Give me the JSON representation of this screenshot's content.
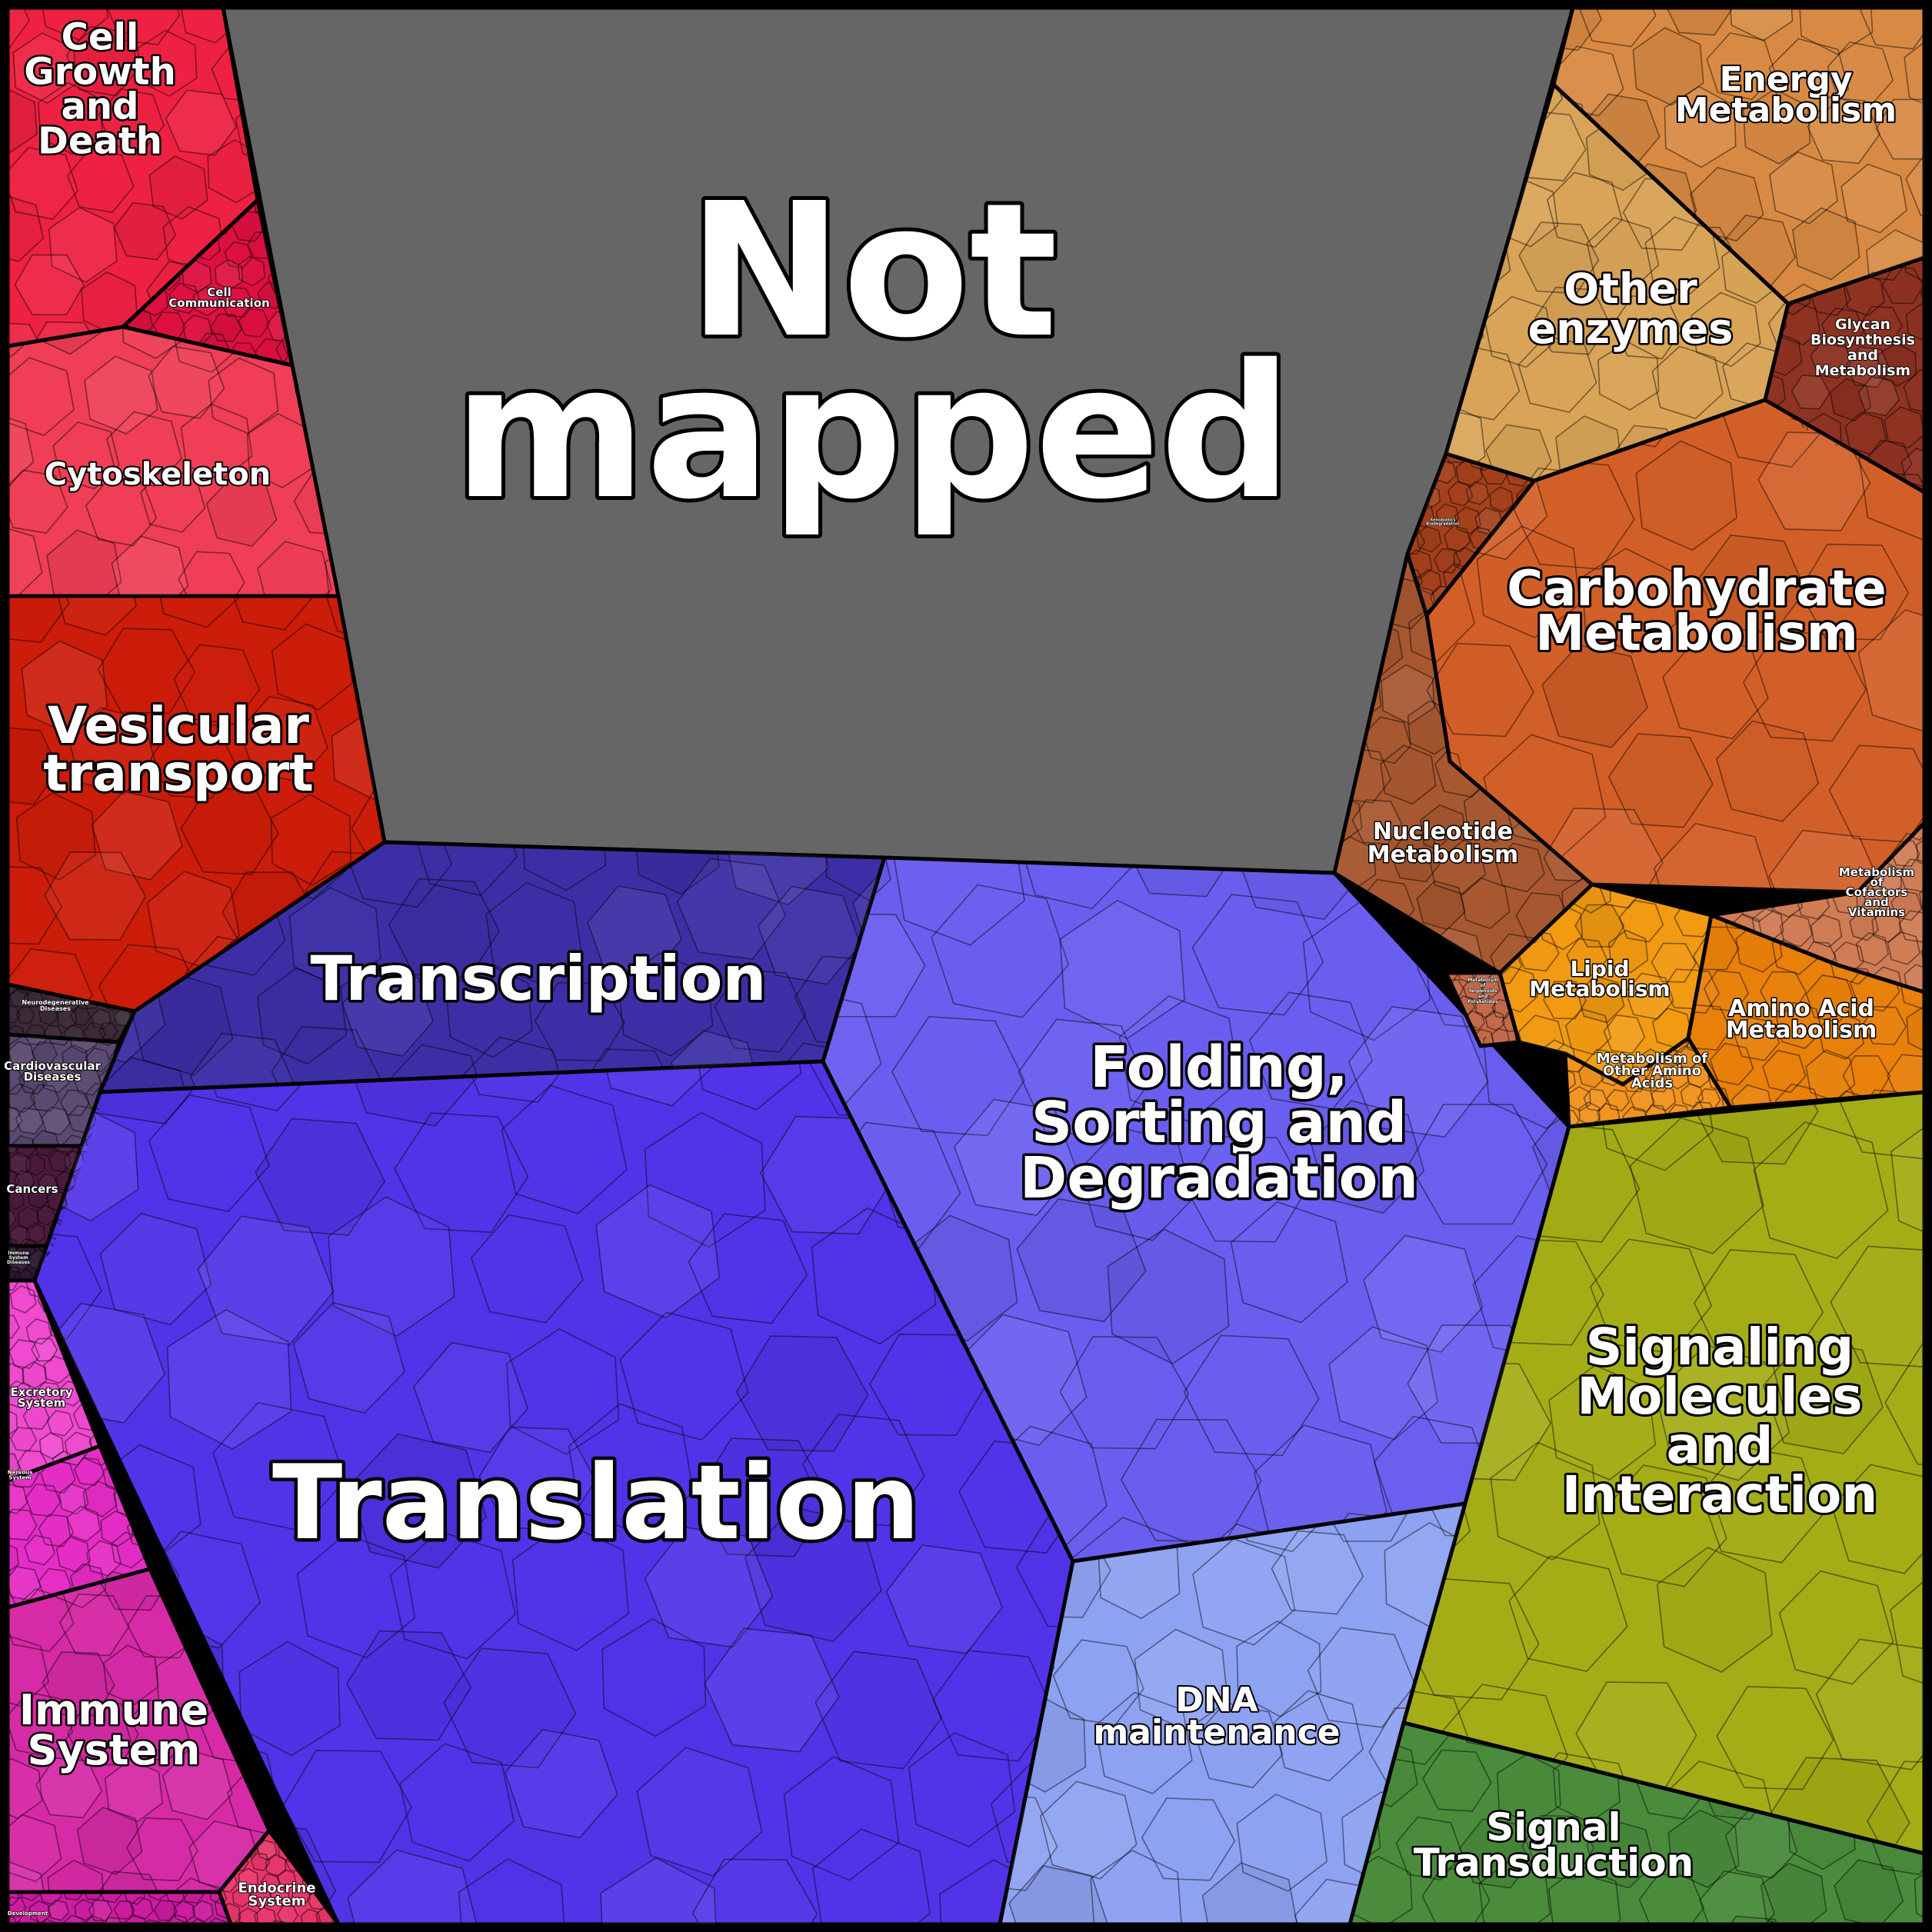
{
  "title": "",
  "colors": {
    "not_mapped": "#666666",
    "cellular_processes": "#ee2c4a",
    "human_diseases": "#4a3355",
    "organismal_systems": "#e23bb4",
    "genetic_information_processing": "#5533ee",
    "metabolism": "#d6642a",
    "environmental_information_processing": "#9fae17",
    "border": "#000000"
  },
  "regions": [
    {
      "key": "not_mapped",
      "label": "Not mapped",
      "color": "#666666"
    },
    {
      "key": "cell_growth",
      "label": "Cell Growth and Death",
      "color": "#ee2142"
    },
    {
      "key": "cell_communication",
      "label": "Cell Communication",
      "color": "#dd1040"
    },
    {
      "key": "cytoskeleton",
      "label": "Cytoskeleton",
      "color": "#ef3e56"
    },
    {
      "key": "vesicular_transport",
      "label": "Vesicular transport",
      "color": "#cc1c0a"
    },
    {
      "key": "neurodegenerative",
      "label": "Neurodegenerative Diseases",
      "color": "#3c2a38"
    },
    {
      "key": "cardiovascular",
      "label": "Cardiovascular Diseases",
      "color": "#5c4a72"
    },
    {
      "key": "cancers",
      "label": "Cancers",
      "color": "#4a1a3c"
    },
    {
      "key": "immune_diseases",
      "label": "Immune System Diseases",
      "color": "#2c1830"
    },
    {
      "key": "excretory",
      "label": "Excretory System",
      "color": "#f04ad0"
    },
    {
      "key": "nervous",
      "label": "Nervous System",
      "color": "#e62cc6"
    },
    {
      "key": "immune_system",
      "label": "Immune System",
      "color": "#d62aa6"
    },
    {
      "key": "endocrine",
      "label": "Endocrine System",
      "color": "#e8366a"
    },
    {
      "key": "development",
      "label": "Development",
      "color": "#cc1ca0"
    },
    {
      "key": "transcription",
      "label": "Transcription",
      "color": "#3c2fa6"
    },
    {
      "key": "translation",
      "label": "Translation",
      "color": "#5233e8"
    },
    {
      "key": "folding",
      "label": "Folding, Sorting and Degradation",
      "color": "#6a5ef0"
    },
    {
      "key": "dna_maintenance",
      "label": "DNA maintenance",
      "color": "#8ea2f2"
    },
    {
      "key": "energy",
      "label": "Energy Metabolism",
      "color": "#d88a44"
    },
    {
      "key": "other_enzymes",
      "label": "Other enzymes",
      "color": "#d9a458"
    },
    {
      "key": "glycan",
      "label": "Glycan Biosynthesis and Metabolism",
      "color": "#8e3222"
    },
    {
      "key": "carbohydrate",
      "label": "Carbohydrate Metabolism",
      "color": "#d35f28"
    },
    {
      "key": "nucleotide",
      "label": "Nucleotide Metabolism",
      "color": "#a75830"
    },
    {
      "key": "terpenoids",
      "label": "Metabolism of Terpenoids and Polyketides",
      "color": "#c46a4c"
    },
    {
      "key": "lipid",
      "label": "Lipid Metabolism",
      "color": "#f19a12"
    },
    {
      "key": "cofactors",
      "label": "Metabolism of Cofactors and Vitamins",
      "color": "#d07c55"
    },
    {
      "key": "amino_acid",
      "label": "Amino Acid Metabolism",
      "color": "#e8800a"
    },
    {
      "key": "other_amino",
      "label": "Metabolism of Other Amino Acids",
      "color": "#f29420"
    },
    {
      "key": "signaling",
      "label": "Signaling Molecules and Interaction",
      "color": "#a4ad16"
    },
    {
      "key": "signal_transduction",
      "label": "Signal Transduction",
      "color": "#4a8c3c"
    },
    {
      "key": "xenobiotics",
      "label": "Xenobiotics Biodegradation",
      "color": "#a4401c"
    }
  ],
  "labels": {
    "not_mapped": [
      "Not",
      "mapped"
    ],
    "cell_growth": [
      "Cell",
      "Growth",
      "and",
      "Death"
    ],
    "cell_communication": [
      "Cell",
      "Communication"
    ],
    "cytoskeleton": [
      "Cytoskeleton"
    ],
    "vesicular_transport": [
      "Vesicular",
      "transport"
    ],
    "neurodegenerative": [
      "Neurodegenerative",
      "Diseases"
    ],
    "cardiovascular": [
      "Cardiovascular",
      "Diseases"
    ],
    "cancers": [
      "Cancers"
    ],
    "immune_diseases": [
      "Immune",
      "System",
      "Diseases"
    ],
    "excretory": [
      "Excretory",
      "System"
    ],
    "nervous": [
      "Nervous",
      "System"
    ],
    "immune_system": [
      "Immune",
      "System"
    ],
    "endocrine": [
      "Endocrine",
      "System"
    ],
    "development": [
      "Development"
    ],
    "transcription": [
      "Transcription"
    ],
    "translation": [
      "Translation"
    ],
    "folding": [
      "Folding,",
      "Sorting and",
      "Degradation"
    ],
    "dna_maintenance": [
      "DNA",
      "maintenance"
    ],
    "energy": [
      "Energy",
      "Metabolism"
    ],
    "other_enzymes": [
      "Other",
      "enzymes"
    ],
    "glycan": [
      "Glycan",
      "Biosynthesis",
      "and",
      "Metabolism"
    ],
    "carbohydrate": [
      "Carbohydrate",
      "Metabolism"
    ],
    "nucleotide": [
      "Nucleotide",
      "Metabolism"
    ],
    "terpenoids": [
      "Metabolism",
      "of",
      "Terpenoids",
      "and",
      "Polyketides"
    ],
    "lipid": [
      "Lipid",
      "Metabolism"
    ],
    "cofactors": [
      "Metabolism",
      "of",
      "Cofactors",
      "and",
      "Vitamins"
    ],
    "amino_acid": [
      "Amino Acid",
      "Metabolism"
    ],
    "other_amino": [
      "Metabolism of",
      "Other Amino",
      "Acids"
    ],
    "signaling": [
      "Signaling",
      "Molecules",
      "and",
      "Interaction"
    ],
    "signal_transduction": [
      "Signal",
      "Transduction"
    ],
    "xenobiotics": [
      "Xenobiotics",
      "Biodegradation"
    ]
  }
}
